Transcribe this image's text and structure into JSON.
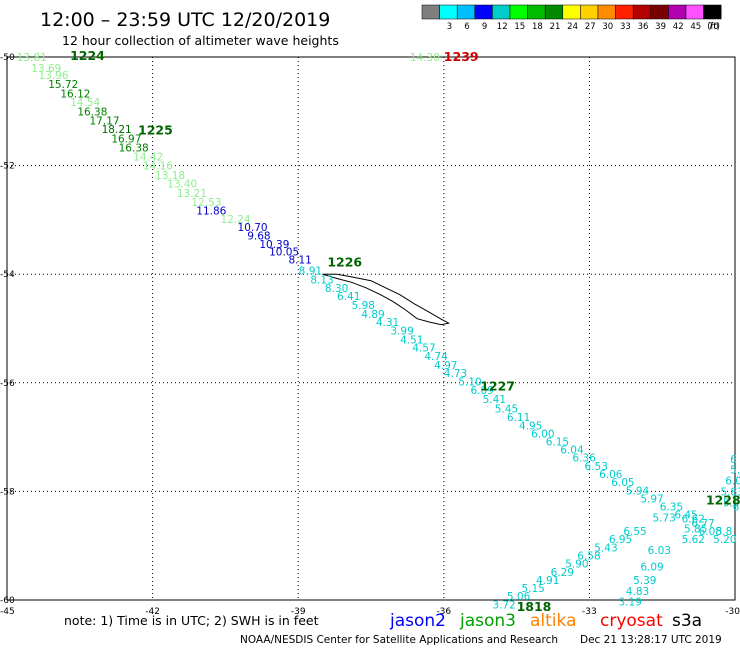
{
  "title": "12:00 – 23:59 UTC 12/20/2019",
  "subtitle": "12 hour collection of altimeter wave heights",
  "legend": {
    "unit": "(ft)",
    "bins": [
      {
        "label": "",
        "color": "#7f7f7f"
      },
      {
        "label": "3",
        "color": "#00ffff"
      },
      {
        "label": "6",
        "color": "#00bfff"
      },
      {
        "label": "9",
        "color": "#0000ff"
      },
      {
        "label": "12",
        "color": "#00cccc"
      },
      {
        "label": "15",
        "color": "#00ff00"
      },
      {
        "label": "18",
        "color": "#00bb00"
      },
      {
        "label": "21",
        "color": "#008800"
      },
      {
        "label": "24",
        "color": "#ffff00"
      },
      {
        "label": "27",
        "color": "#ffd000"
      },
      {
        "label": "30",
        "color": "#ff8c00"
      },
      {
        "label": "33",
        "color": "#ff2000"
      },
      {
        "label": "36",
        "color": "#b40000"
      },
      {
        "label": "39",
        "color": "#7a0000"
      },
      {
        "label": "42",
        "color": "#b000b0"
      },
      {
        "label": "45",
        "color": "#ff50ff"
      },
      {
        "label": "70",
        "color": "#000000"
      }
    ]
  },
  "map": {
    "lon_range": [
      -45,
      -30
    ],
    "lat_range": [
      -60,
      -50
    ],
    "lon_ticks": [
      "-45",
      "-42",
      "-39",
      "-36",
      "-33",
      "-30"
    ],
    "lat_ticks": [
      "-50",
      "-52",
      "-54",
      "-56",
      "-58",
      "-60"
    ],
    "grid": true
  },
  "colors": {
    "light_green": "#90ee90",
    "green": "#008000",
    "dark_green": "#006400",
    "cyan": "#00cccc",
    "blue": "#0000cc",
    "red": "#cc0000",
    "jason2": "#0000ff",
    "jason3": "#00a000",
    "altika": "#ff8000",
    "cryosat": "#ff0000",
    "s3a": "#000000"
  },
  "observations": [
    {
      "v": "13.81",
      "lon": -44.8,
      "lat": -50.0,
      "c": "light_green"
    },
    {
      "v": "13.69",
      "lon": -44.5,
      "lat": -50.2,
      "c": "light_green"
    },
    {
      "v": "13.96",
      "lon": -44.35,
      "lat": -50.33,
      "c": "light_green"
    },
    {
      "v": "15.72",
      "lon": -44.15,
      "lat": -50.5,
      "c": "green"
    },
    {
      "v": "16.12",
      "lon": -43.9,
      "lat": -50.67,
      "c": "green"
    },
    {
      "v": "14.54",
      "lon": -43.7,
      "lat": -50.83,
      "c": "light_green"
    },
    {
      "v": "16.38",
      "lon": -43.55,
      "lat": -51.0,
      "c": "green"
    },
    {
      "v": "17.17",
      "lon": -43.3,
      "lat": -51.17,
      "c": "green"
    },
    {
      "v": "18.21",
      "lon": -43.05,
      "lat": -51.33,
      "c": "dark_green"
    },
    {
      "v": "16.97",
      "lon": -42.85,
      "lat": -51.5,
      "c": "green"
    },
    {
      "v": "16.38",
      "lon": -42.7,
      "lat": -51.67,
      "c": "green"
    },
    {
      "v": "14.42",
      "lon": -42.4,
      "lat": -51.83,
      "c": "light_green"
    },
    {
      "v": "14.16",
      "lon": -42.2,
      "lat": -52.0,
      "c": "light_green"
    },
    {
      "v": "13.18",
      "lon": -41.95,
      "lat": -52.17,
      "c": "light_green"
    },
    {
      "v": "13.40",
      "lon": -41.7,
      "lat": -52.33,
      "c": "light_green"
    },
    {
      "v": "13.21",
      "lon": -41.5,
      "lat": -52.5,
      "c": "light_green"
    },
    {
      "v": "12.53",
      "lon": -41.2,
      "lat": -52.67,
      "c": "light_green"
    },
    {
      "v": "11.86",
      "lon": -41.1,
      "lat": -52.83,
      "c": "blue"
    },
    {
      "v": "12.24",
      "lon": -40.6,
      "lat": -52.98,
      "c": "light_green"
    },
    {
      "v": "10.70",
      "lon": -40.25,
      "lat": -53.13,
      "c": "blue"
    },
    {
      "v": "9.68",
      "lon": -40.05,
      "lat": -53.29,
      "c": "blue"
    },
    {
      "v": "10.39",
      "lon": -39.8,
      "lat": -53.44,
      "c": "blue"
    },
    {
      "v": "10.05",
      "lon": -39.6,
      "lat": -53.58,
      "c": "blue"
    },
    {
      "v": "8.11",
      "lon": -39.2,
      "lat": -53.73,
      "c": "blue"
    },
    {
      "v": "8.91",
      "lon": -38.99,
      "lat": -53.93,
      "c": "cyan"
    },
    {
      "v": "8.13",
      "lon": -38.75,
      "lat": -54.1,
      "c": "cyan"
    },
    {
      "v": "8.30",
      "lon": -38.45,
      "lat": -54.25,
      "c": "cyan"
    },
    {
      "v": "6.41",
      "lon": -38.2,
      "lat": -54.4,
      "c": "cyan"
    },
    {
      "v": "5.98",
      "lon": -37.9,
      "lat": -54.57,
      "c": "cyan"
    },
    {
      "v": "4.89",
      "lon": -37.7,
      "lat": -54.73,
      "c": "cyan"
    },
    {
      "v": "4.31",
      "lon": -37.4,
      "lat": -54.88,
      "c": "cyan"
    },
    {
      "v": "3.99",
      "lon": -37.1,
      "lat": -55.04,
      "c": "cyan"
    },
    {
      "v": "4.51",
      "lon": -36.9,
      "lat": -55.2,
      "c": "cyan"
    },
    {
      "v": "4.57",
      "lon": -36.65,
      "lat": -55.35,
      "c": "cyan"
    },
    {
      "v": "4.74",
      "lon": -36.4,
      "lat": -55.51,
      "c": "cyan"
    },
    {
      "v": "4.97",
      "lon": -36.2,
      "lat": -55.67,
      "c": "cyan"
    },
    {
      "v": "4.73",
      "lon": -36.0,
      "lat": -55.82,
      "c": "cyan"
    },
    {
      "v": "5.10",
      "lon": -35.7,
      "lat": -55.98,
      "c": "cyan"
    },
    {
      "v": "6.09",
      "lon": -35.45,
      "lat": -56.13,
      "c": "cyan"
    },
    {
      "v": "5.41",
      "lon": -35.2,
      "lat": -56.3,
      "c": "cyan"
    },
    {
      "v": "5.45",
      "lon": -34.95,
      "lat": -56.47,
      "c": "cyan"
    },
    {
      "v": "6.11",
      "lon": -34.7,
      "lat": -56.63,
      "c": "cyan"
    },
    {
      "v": "4.95",
      "lon": -34.45,
      "lat": -56.79,
      "c": "cyan"
    },
    {
      "v": "6.00",
      "lon": -34.2,
      "lat": -56.93,
      "c": "cyan"
    },
    {
      "v": "6.15",
      "lon": -33.9,
      "lat": -57.08,
      "c": "cyan"
    },
    {
      "v": "6.04",
      "lon": -33.6,
      "lat": -57.23,
      "c": "cyan"
    },
    {
      "v": "6.36",
      "lon": -33.35,
      "lat": -57.38,
      "c": "cyan"
    },
    {
      "v": "6.53",
      "lon": -33.1,
      "lat": -57.53,
      "c": "cyan"
    },
    {
      "v": "6.06",
      "lon": -32.8,
      "lat": -57.68,
      "c": "cyan"
    },
    {
      "v": "6.05",
      "lon": -32.55,
      "lat": -57.83,
      "c": "cyan"
    },
    {
      "v": "5.94",
      "lon": -32.25,
      "lat": -57.98,
      "c": "cyan"
    },
    {
      "v": "5.97",
      "lon": -31.95,
      "lat": -58.13,
      "c": "cyan"
    },
    {
      "v": "6.35",
      "lon": -31.55,
      "lat": -58.28,
      "c": "cyan"
    },
    {
      "v": "6.45",
      "lon": -31.25,
      "lat": -58.43,
      "c": "cyan"
    },
    {
      "v": "6.62",
      "lon": -31.1,
      "lat": -58.5,
      "c": "cyan"
    },
    {
      "v": "6.77",
      "lon": -30.9,
      "lat": -58.58,
      "c": "cyan"
    },
    {
      "v": "6.08",
      "lon": -30.75,
      "lat": -58.73,
      "c": "cyan"
    },
    {
      "v": "5.20",
      "lon": -30.45,
      "lat": -58.88,
      "c": "cyan"
    },
    {
      "v": "5.8",
      "lon": -30.4,
      "lat": -58.73,
      "c": "cyan"
    },
    {
      "v": "5.85",
      "lon": -31.05,
      "lat": -58.68,
      "c": "cyan"
    },
    {
      "v": "5.62",
      "lon": -31.1,
      "lat": -58.88,
      "c": "cyan"
    },
    {
      "v": "6.03",
      "lon": -31.8,
      "lat": -59.08,
      "c": "cyan"
    },
    {
      "v": "6.09",
      "lon": -31.95,
      "lat": -59.38,
      "c": "cyan"
    },
    {
      "v": "5.39",
      "lon": -32.1,
      "lat": -59.63,
      "c": "cyan"
    },
    {
      "v": "4.83",
      "lon": -32.25,
      "lat": -59.83,
      "c": "cyan"
    },
    {
      "v": "3.19",
      "lon": -32.4,
      "lat": -60.03,
      "c": "cyan"
    },
    {
      "v": "5.73",
      "lon": -31.7,
      "lat": -58.48,
      "c": "cyan"
    },
    {
      "v": "6.55",
      "lon": -32.3,
      "lat": -58.73,
      "c": "cyan"
    },
    {
      "v": "6.95",
      "lon": -32.6,
      "lat": -58.88,
      "c": "cyan"
    },
    {
      "v": "5.43",
      "lon": -32.9,
      "lat": -59.03,
      "c": "cyan"
    },
    {
      "v": "6.58",
      "lon": -33.25,
      "lat": -59.18,
      "c": "cyan"
    },
    {
      "v": "5.90",
      "lon": -33.5,
      "lat": -59.33,
      "c": "cyan"
    },
    {
      "v": "6.29",
      "lon": -33.8,
      "lat": -59.48,
      "c": "cyan"
    },
    {
      "v": "4.91",
      "lon": -34.1,
      "lat": -59.63,
      "c": "cyan"
    },
    {
      "v": "5.15",
      "lon": -34.4,
      "lat": -59.78,
      "c": "cyan"
    },
    {
      "v": "5.06",
      "lon": -34.7,
      "lat": -59.93,
      "c": "cyan"
    },
    {
      "v": "3.72",
      "lon": -35.0,
      "lat": -60.08,
      "c": "cyan"
    },
    {
      "v": "6",
      "lon": -30.1,
      "lat": -57.4,
      "c": "cyan"
    },
    {
      "v": "5.",
      "lon": -30.1,
      "lat": -57.6,
      "c": "cyan"
    },
    {
      "v": "6.0",
      "lon": -30.2,
      "lat": -57.8,
      "c": "cyan"
    },
    {
      "v": "5.83",
      "lon": -30.3,
      "lat": -58.0,
      "c": "cyan"
    },
    {
      "v": "5.9",
      "lon": -30.25,
      "lat": -58.2,
      "c": "cyan"
    },
    {
      "v": "6.2",
      "lon": -30.05,
      "lat": -58.28,
      "c": "cyan"
    },
    {
      "v": "14.30",
      "lon": -36.7,
      "lat": -50.0,
      "c": "light_green"
    }
  ],
  "passes": [
    {
      "t": "1224",
      "lon": -43.7,
      "lat": -49.98,
      "c": "dark_green"
    },
    {
      "t": "1225",
      "lon": -42.3,
      "lat": -51.35,
      "c": "dark_green"
    },
    {
      "t": "1226",
      "lon": -38.4,
      "lat": -53.78,
      "c": "dark_green"
    },
    {
      "t": "1227",
      "lon": -35.25,
      "lat": -56.07,
      "c": "dark_green"
    },
    {
      "t": "1228",
      "lon": -30.6,
      "lat": -58.17,
      "c": "dark_green"
    },
    {
      "t": "1818",
      "lon": -34.5,
      "lat": -60.13,
      "c": "dark_green"
    },
    {
      "t": "1239",
      "lon": -36.0,
      "lat": -50.0,
      "c": "red"
    }
  ],
  "island": {
    "name": "",
    "outline": [
      [
        -38.5,
        -54.0
      ],
      [
        -38.2,
        -54.0
      ],
      [
        -37.9,
        -54.05
      ],
      [
        -37.5,
        -54.12
      ],
      [
        -37.2,
        -54.25
      ],
      [
        -36.9,
        -54.38
      ],
      [
        -36.6,
        -54.55
      ],
      [
        -36.3,
        -54.7
      ],
      [
        -36.05,
        -54.83
      ],
      [
        -35.9,
        -54.9
      ],
      [
        -36.05,
        -54.93
      ],
      [
        -36.3,
        -54.88
      ],
      [
        -36.55,
        -54.82
      ],
      [
        -36.8,
        -54.65
      ],
      [
        -37.05,
        -54.5
      ],
      [
        -37.3,
        -54.38
      ],
      [
        -37.6,
        -54.25
      ],
      [
        -37.9,
        -54.15
      ],
      [
        -38.2,
        -54.08
      ],
      [
        -38.5,
        -54.0
      ]
    ]
  },
  "footer": {
    "note": "note: 1) Time is in UTC; 2) SWH is in feet",
    "satellites": [
      {
        "name": "jason2",
        "c": "jason2"
      },
      {
        "name": "jason3",
        "c": "jason3"
      },
      {
        "name": "altika",
        "c": "altika"
      },
      {
        "name": "cryosat",
        "c": "cryosat"
      },
      {
        "name": "s3a",
        "c": "s3a"
      }
    ],
    "credit": "NOAA/NESDIS Center for Satellite Applications and Research",
    "timestamp": "Dec 21 13:28:17 UTC 2019"
  }
}
